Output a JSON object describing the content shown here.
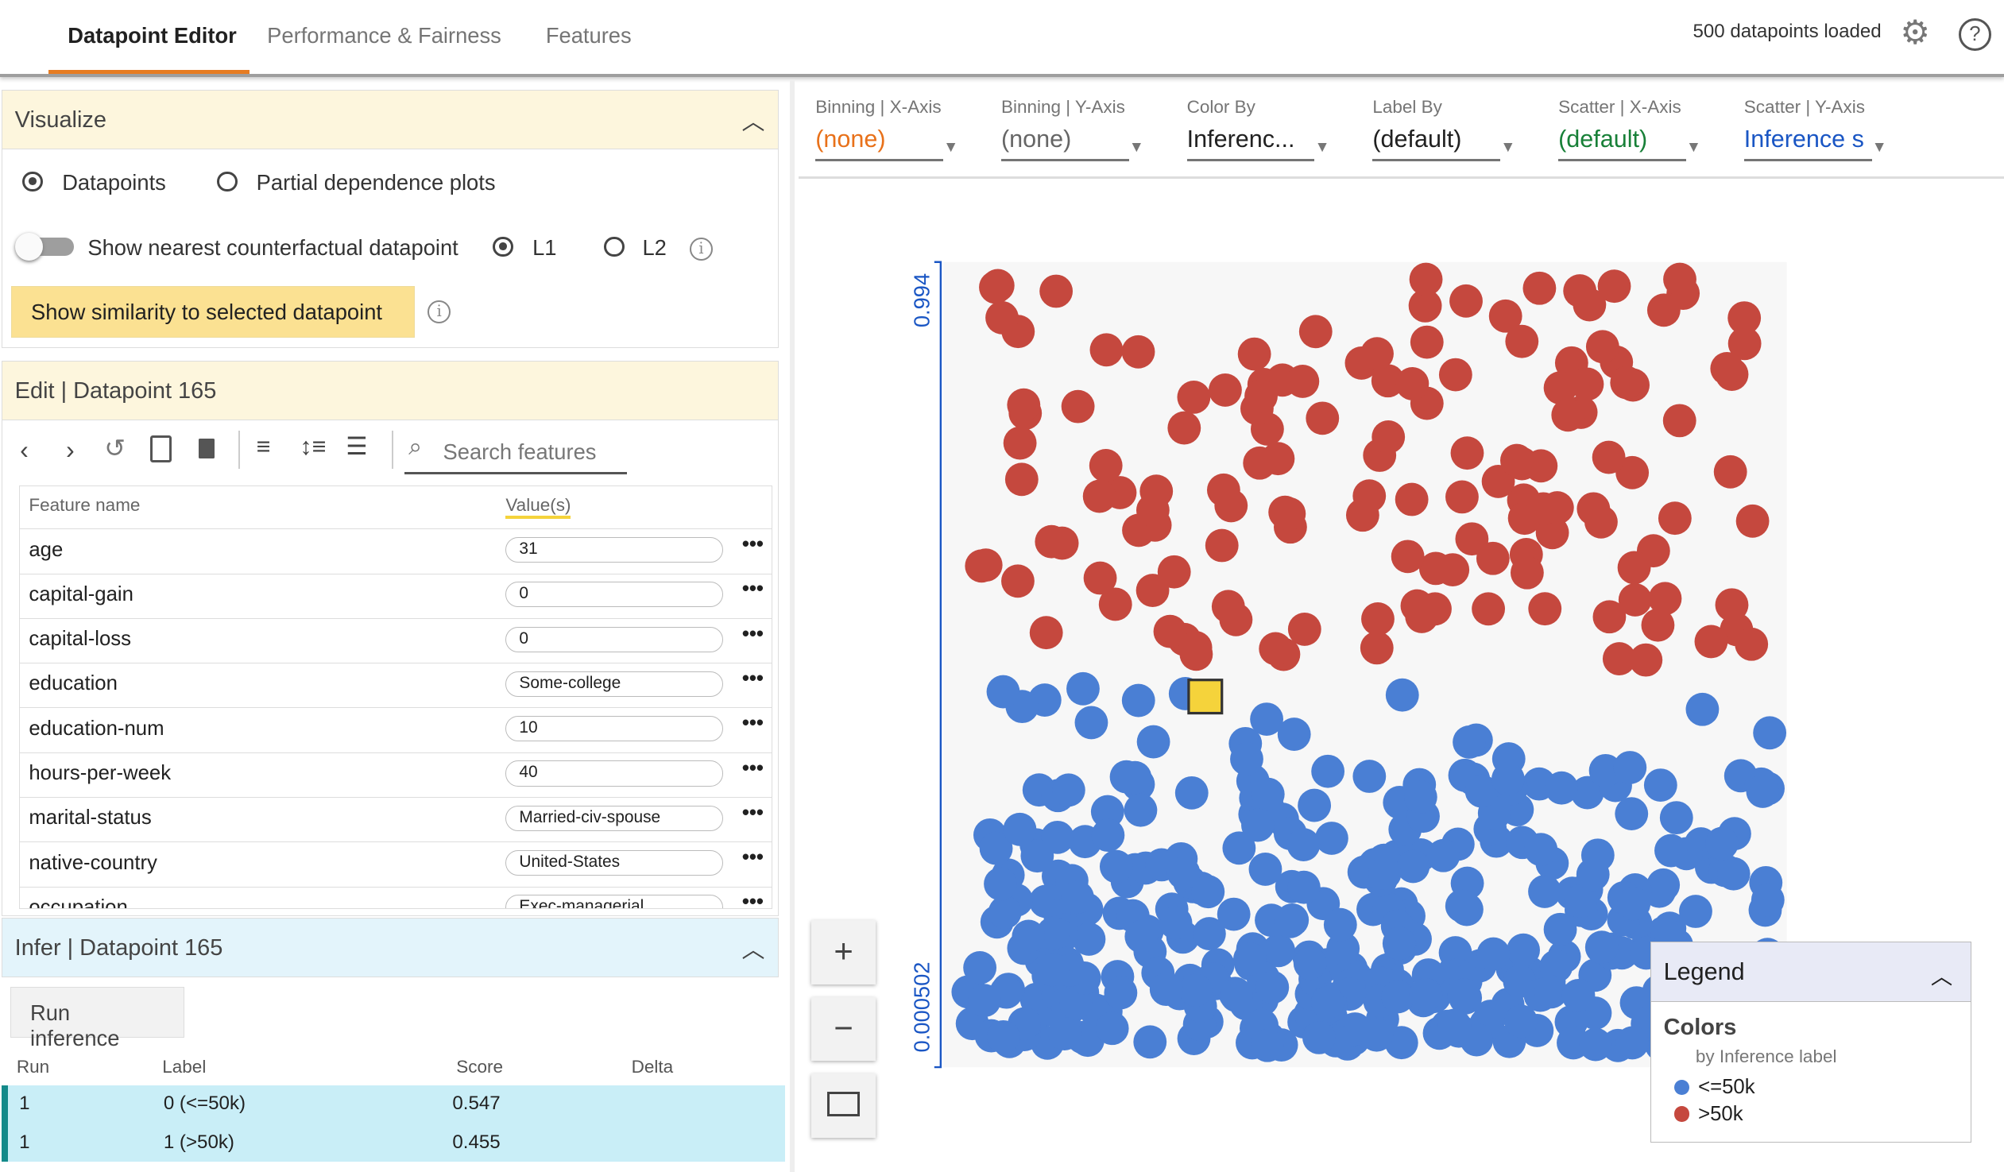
{
  "tabs": [
    {
      "label": "Datapoint Editor",
      "active": true
    },
    {
      "label": "Performance & Fairness"
    },
    {
      "label": "Features"
    }
  ],
  "status": "500 datapoints loaded",
  "visualize": {
    "title": "Visualize",
    "radio_datapoints": "Datapoints",
    "radio_pdp": "Partial dependence plots",
    "counterfactual": "Show nearest counterfactual datapoint",
    "l1": "L1",
    "l2": "L2",
    "similarity_button": "Show similarity to selected datapoint"
  },
  "edit": {
    "title": "Edit | Datapoint 165",
    "search_placeholder": "Search features",
    "col_name": "Feature name",
    "col_value": "Value(s)",
    "features": [
      {
        "name": "age",
        "value": "31"
      },
      {
        "name": "capital-gain",
        "value": "0"
      },
      {
        "name": "capital-loss",
        "value": "0"
      },
      {
        "name": "education",
        "value": "Some-college"
      },
      {
        "name": "education-num",
        "value": "10"
      },
      {
        "name": "hours-per-week",
        "value": "40"
      },
      {
        "name": "marital-status",
        "value": "Married-civ-spouse"
      },
      {
        "name": "native-country",
        "value": "United-States"
      },
      {
        "name": "occupation",
        "value": "Exec-managerial"
      }
    ],
    "more": "•••"
  },
  "infer": {
    "title": "Infer | Datapoint 165",
    "run_button": "Run inference",
    "cols": [
      "Run",
      "Label",
      "Score",
      "Delta"
    ],
    "rows": [
      {
        "run": "1",
        "label": "0 (<=50k)",
        "score": "0.547",
        "delta": ""
      },
      {
        "run": "1",
        "label": "1 (>50k)",
        "score": "0.455",
        "delta": ""
      }
    ]
  },
  "controls": [
    {
      "title": "Binning | X-Axis",
      "value": "(none)",
      "color": "#e8711a"
    },
    {
      "title": "Binning | Y-Axis",
      "value": "(none)",
      "color": "#666666"
    },
    {
      "title": "Color By",
      "value": "Inferenc...",
      "color": "#212121"
    },
    {
      "title": "Label By",
      "value": "(default)",
      "color": "#212121"
    },
    {
      "title": "Scatter | X-Axis",
      "value": "(default)",
      "color": "#188038"
    },
    {
      "title": "Scatter | Y-Axis",
      "value": "Inference s",
      "color": "#1a56c4"
    }
  ],
  "zoom": {
    "in": "+",
    "out": "−"
  },
  "legend": {
    "title": "Legend",
    "section": "Colors",
    "sub": "by Inference label",
    "items": [
      {
        "label": "<=50k",
        "color": "#4a7fd4"
      },
      {
        "label": ">50k",
        "color": "#c5483e"
      }
    ]
  },
  "chart_data": {
    "type": "scatter",
    "y_axis": "Inference score",
    "ylim": [
      0.000502,
      0.994
    ],
    "tick_labels": [
      "0.994",
      "0.000502"
    ],
    "total_points": 500,
    "selected_datapoint": 165,
    "series": [
      {
        "name": "<=50k",
        "color": "#4a7fd4"
      },
      {
        "name": ">50k",
        "color": "#c5483e"
      }
    ]
  }
}
